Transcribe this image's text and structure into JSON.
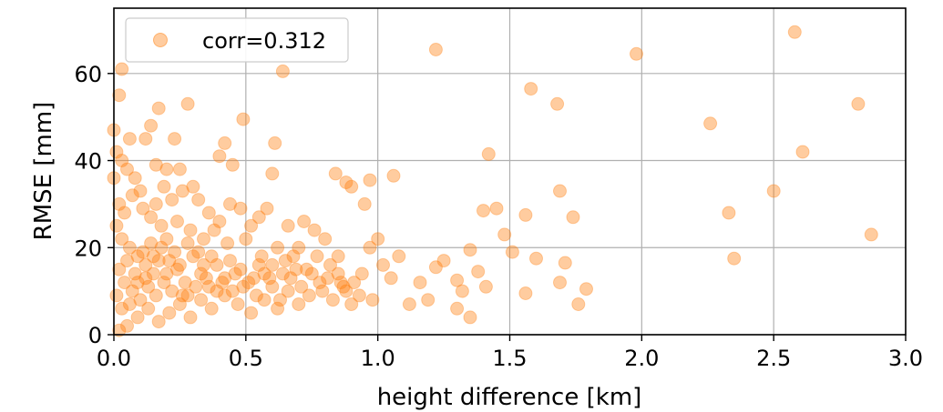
{
  "chart_data": {
    "type": "scatter",
    "xlabel": "height difference [km]",
    "ylabel": "RMSE [mm]",
    "xlim": [
      0.0,
      3.0
    ],
    "ylim": [
      0,
      75
    ],
    "x_ticks": [
      "0.0",
      "0.5",
      "1.0",
      "1.5",
      "2.0",
      "2.5",
      "3.0"
    ],
    "y_ticks": [
      "0",
      "20",
      "40",
      "60"
    ],
    "x_tick_values": [
      0.0,
      0.5,
      1.0,
      1.5,
      2.0,
      2.5,
      3.0
    ],
    "y_tick_values": [
      0,
      20,
      40,
      60
    ],
    "grid": true,
    "legend_position": "top-left",
    "marker_color": "#ff7f0e",
    "marker_alpha": 0.4,
    "series": [
      {
        "name": "corr=0.312",
        "points": [
          [
            0.03,
            61
          ],
          [
            0.02,
            55
          ],
          [
            0.0,
            47
          ],
          [
            0.06,
            45
          ],
          [
            0.12,
            45
          ],
          [
            0.14,
            48
          ],
          [
            0.17,
            52
          ],
          [
            0.23,
            45
          ],
          [
            0.28,
            53
          ],
          [
            0.16,
            39
          ],
          [
            0.2,
            38
          ],
          [
            0.25,
            38
          ],
          [
            0.42,
            44
          ],
          [
            0.49,
            49.5
          ],
          [
            0.61,
            44
          ],
          [
            0.64,
            60.5
          ],
          [
            0.4,
            41
          ],
          [
            0.45,
            39
          ],
          [
            0.6,
            37
          ],
          [
            0.84,
            37
          ],
          [
            0.9,
            34
          ],
          [
            0.88,
            35
          ],
          [
            0.97,
            35.5
          ],
          [
            1.06,
            36.5
          ],
          [
            0.95,
            30
          ],
          [
            1.22,
            65.5
          ],
          [
            1.58,
            56.5
          ],
          [
            1.68,
            53
          ],
          [
            1.98,
            64.5
          ],
          [
            2.26,
            48.5
          ],
          [
            2.58,
            69.5
          ],
          [
            2.82,
            53
          ],
          [
            2.61,
            42
          ],
          [
            1.42,
            41.5
          ],
          [
            1.69,
            33
          ],
          [
            1.45,
            29
          ],
          [
            1.4,
            28.5
          ],
          [
            1.56,
            27.5
          ],
          [
            1.74,
            27
          ],
          [
            2.33,
            28
          ],
          [
            2.5,
            33
          ],
          [
            2.87,
            23
          ],
          [
            1.51,
            19
          ],
          [
            1.6,
            17.5
          ],
          [
            1.71,
            16.5
          ],
          [
            2.35,
            17.5
          ],
          [
            1.35,
            19.5
          ],
          [
            1.48,
            23
          ],
          [
            1.25,
            17
          ],
          [
            1.3,
            12.5
          ],
          [
            1.32,
            10
          ],
          [
            1.38,
            14.5
          ],
          [
            1.41,
            11
          ],
          [
            1.56,
            9.5
          ],
          [
            1.69,
            12
          ],
          [
            1.76,
            7
          ],
          [
            1.79,
            10.5
          ],
          [
            1.35,
            4
          ],
          [
            1.3,
            6
          ],
          [
            1.19,
            8
          ],
          [
            1.12,
            7
          ],
          [
            1.16,
            12
          ],
          [
            1.22,
            15.5
          ],
          [
            1.08,
            18
          ],
          [
            1.05,
            13
          ],
          [
            1.02,
            16
          ],
          [
            1.0,
            22
          ],
          [
            0.97,
            20
          ],
          [
            0.94,
            14
          ],
          [
            0.91,
            12
          ],
          [
            0.88,
            10
          ],
          [
            0.9,
            7
          ],
          [
            0.85,
            18
          ],
          [
            0.8,
            22
          ],
          [
            0.76,
            24
          ],
          [
            0.72,
            26
          ],
          [
            0.7,
            20
          ],
          [
            0.66,
            25
          ],
          [
            0.62,
            20
          ],
          [
            0.58,
            29
          ],
          [
            0.55,
            27
          ],
          [
            0.52,
            25
          ],
          [
            0.48,
            29
          ],
          [
            0.44,
            30
          ],
          [
            0.4,
            26
          ],
          [
            0.36,
            28
          ],
          [
            0.32,
            31
          ],
          [
            0.3,
            34
          ],
          [
            0.26,
            33
          ],
          [
            0.22,
            31
          ],
          [
            0.19,
            34
          ],
          [
            0.16,
            30
          ],
          [
            0.1,
            33
          ],
          [
            0.08,
            36
          ],
          [
            0.05,
            38
          ],
          [
            0.03,
            40
          ],
          [
            0.01,
            42
          ],
          [
            0.0,
            36
          ],
          [
            0.02,
            30
          ],
          [
            0.04,
            28
          ],
          [
            0.07,
            32
          ],
          [
            0.11,
            29
          ],
          [
            0.14,
            27
          ],
          [
            0.18,
            25
          ],
          [
            0.24,
            26
          ],
          [
            0.29,
            24
          ],
          [
            0.34,
            22
          ],
          [
            0.38,
            24
          ],
          [
            0.43,
            21
          ],
          [
            0.5,
            22
          ],
          [
            0.56,
            18
          ],
          [
            0.6,
            16
          ],
          [
            0.64,
            14
          ],
          [
            0.68,
            18
          ],
          [
            0.73,
            15
          ],
          [
            0.78,
            12
          ],
          [
            0.82,
            16
          ],
          [
            0.86,
            12
          ],
          [
            0.93,
            9
          ],
          [
            0.98,
            8
          ],
          [
            0.74,
            9
          ],
          [
            0.7,
            7
          ],
          [
            0.66,
            10
          ],
          [
            0.62,
            6
          ],
          [
            0.57,
            8
          ],
          [
            0.52,
            5
          ],
          [
            0.47,
            7
          ],
          [
            0.42,
            9
          ],
          [
            0.37,
            6
          ],
          [
            0.33,
            8
          ],
          [
            0.29,
            4
          ],
          [
            0.25,
            7
          ],
          [
            0.21,
            5
          ],
          [
            0.17,
            3
          ],
          [
            0.13,
            6
          ],
          [
            0.09,
            4
          ],
          [
            0.05,
            2
          ],
          [
            0.02,
            1
          ],
          [
            0.01,
            25
          ],
          [
            0.03,
            22
          ],
          [
            0.06,
            20
          ],
          [
            0.09,
            18
          ],
          [
            0.12,
            16
          ],
          [
            0.15,
            14
          ],
          [
            0.18,
            20
          ],
          [
            0.21,
            17
          ],
          [
            0.24,
            15
          ],
          [
            0.27,
            12
          ],
          [
            0.3,
            18
          ],
          [
            0.33,
            14
          ],
          [
            0.36,
            11
          ],
          [
            0.39,
            16
          ],
          [
            0.42,
            13
          ],
          [
            0.45,
            10
          ],
          [
            0.48,
            15
          ],
          [
            0.51,
            12
          ],
          [
            0.54,
            9
          ],
          [
            0.57,
            14
          ],
          [
            0.6,
            11
          ],
          [
            0.63,
            8
          ],
          [
            0.67,
            13
          ],
          [
            0.71,
            11
          ],
          [
            0.75,
            14
          ],
          [
            0.79,
            10
          ],
          [
            0.83,
            8
          ],
          [
            0.87,
            11
          ],
          [
            0.04,
            12
          ],
          [
            0.07,
            10
          ],
          [
            0.1,
            8
          ],
          [
            0.13,
            11
          ],
          [
            0.16,
            9
          ],
          [
            0.19,
            12
          ],
          [
            0.22,
            10
          ],
          [
            0.26,
            9
          ],
          [
            0.31,
            11
          ],
          [
            0.35,
            13
          ],
          [
            0.41,
            12
          ],
          [
            0.46,
            14
          ],
          [
            0.53,
            13
          ],
          [
            0.02,
            15
          ],
          [
            0.05,
            17
          ],
          [
            0.08,
            14
          ],
          [
            0.11,
            19
          ],
          [
            0.14,
            21
          ],
          [
            0.17,
            17
          ],
          [
            0.2,
            22
          ],
          [
            0.23,
            19
          ],
          [
            0.28,
            21
          ],
          [
            0.32,
            19
          ],
          [
            0.37,
            18
          ],
          [
            0.01,
            9
          ],
          [
            0.03,
            6
          ],
          [
            0.06,
            7
          ],
          [
            0.09,
            12
          ],
          [
            0.12,
            13
          ],
          [
            0.15,
            18
          ],
          [
            0.2,
            14
          ],
          [
            0.25,
            16
          ],
          [
            0.28,
            9
          ],
          [
            0.34,
            16
          ],
          [
            0.39,
            10
          ],
          [
            0.44,
            17
          ],
          [
            0.49,
            11
          ],
          [
            0.55,
            16
          ],
          [
            0.59,
            13
          ],
          [
            0.65,
            17
          ],
          [
            0.69,
            15
          ],
          [
            0.77,
            18
          ],
          [
            0.81,
            13
          ],
          [
            0.85,
            14
          ]
        ]
      }
    ]
  }
}
